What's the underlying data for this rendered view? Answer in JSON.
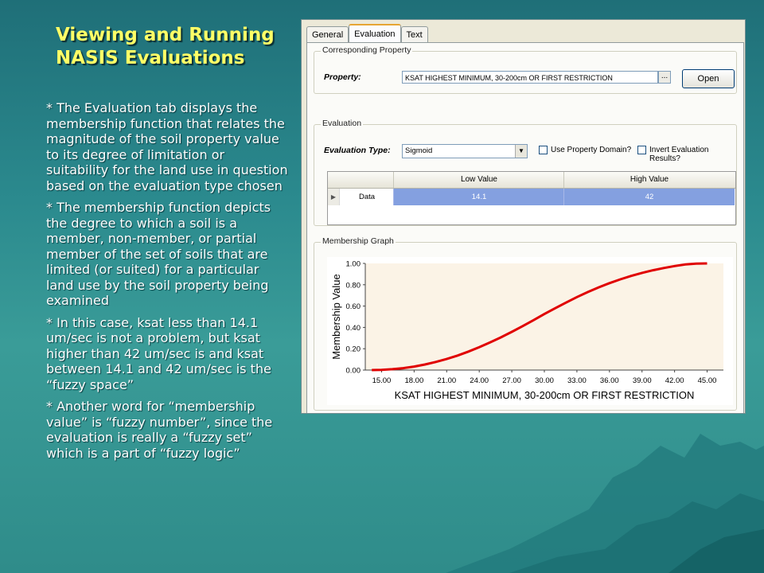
{
  "slide": {
    "title_line1": "Viewing and Running",
    "title_line2": "NASIS Evaluations",
    "bullets": [
      "* The Evaluation tab displays the membership function that relates the magnitude of the soil property value to its degree of limitation or suitability for the land use in question based on the evaluation type chosen",
      "* The membership function depicts the degree to which a soil is a member, non-member, or partial member of the set of soils that are limited (or suited) for a particular land use by the soil property being examined",
      "* In this case, ksat less than 14.1 um/sec is not a problem, but ksat higher than 42 um/sec is and ksat between 14.1 and 42 um/sec is the “fuzzy space”",
      "* Another word for “membership value” is “fuzzy number”, since the evaluation is really a “fuzzy set” which is a part of “fuzzy logic”"
    ]
  },
  "dialog": {
    "tabs": [
      {
        "label": "General",
        "active": false
      },
      {
        "label": "Evaluation",
        "active": true
      },
      {
        "label": "Text",
        "active": false
      }
    ],
    "corresponding_property": {
      "group_label": "Corresponding Property",
      "property_label": "Property:",
      "property_value": "KSAT HIGHEST MINIMUM, 30-200cm OR FIRST RESTRICTION",
      "browse_label": "...",
      "open_label": "Open"
    },
    "evaluation": {
      "group_label": "Evaluation",
      "type_label": "Evaluation Type:",
      "type_value": "Sigmoid",
      "use_property_domain_label": "Use Property Domain?",
      "use_property_domain_checked": false,
      "invert_results_label": "Invert Evaluation Results?",
      "invert_results_checked": false,
      "grid": {
        "columns": [
          "Low Value",
          "High Value"
        ],
        "rows": [
          {
            "name": "Data",
            "low": "14.1",
            "high": "42"
          }
        ]
      }
    },
    "membership_graph": {
      "group_label": "Membership Graph"
    }
  },
  "chart_data": {
    "type": "line",
    "title": "",
    "xlabel": "KSAT HIGHEST MINIMUM, 30-200cm OR FIRST RESTRICTION",
    "ylabel": "Membership Value",
    "xlim": [
      13.5,
      46.5
    ],
    "ylim": [
      0,
      1
    ],
    "x_ticks": [
      "15.00",
      "18.00",
      "21.00",
      "24.00",
      "27.00",
      "30.00",
      "33.00",
      "36.00",
      "39.00",
      "42.00",
      "45.00"
    ],
    "y_ticks": [
      "0.00",
      "0.20",
      "0.40",
      "0.60",
      "0.80",
      "1.00"
    ],
    "grid": false,
    "series": [
      {
        "color": "#e00000",
        "x": [
          14.1,
          15,
          16,
          17,
          18,
          19,
          20,
          21,
          22,
          23,
          24,
          25,
          26,
          27,
          28,
          29,
          30,
          31,
          32,
          33,
          34,
          35,
          36,
          37,
          38,
          39,
          40,
          41,
          42,
          43,
          44,
          45
        ],
        "y": [
          0.0,
          0.002,
          0.008,
          0.018,
          0.033,
          0.052,
          0.076,
          0.104,
          0.136,
          0.173,
          0.214,
          0.259,
          0.307,
          0.358,
          0.412,
          0.468,
          0.525,
          0.58,
          0.633,
          0.684,
          0.731,
          0.775,
          0.815,
          0.851,
          0.883,
          0.911,
          0.936,
          0.957,
          0.975,
          0.99,
          0.998,
          1.0
        ]
      }
    ]
  },
  "colors": {
    "title": "#ffff66",
    "body_text": "#ffffff",
    "plot_area": "#fbf3e6",
    "curve": "#e00000",
    "selected_cell": "#84a0e0"
  }
}
